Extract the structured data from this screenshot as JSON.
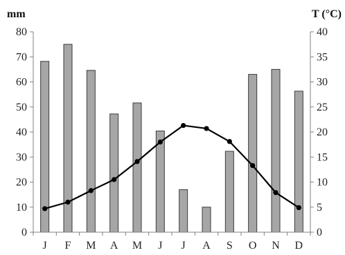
{
  "chart_data": {
    "type": "bar",
    "categories": [
      "J",
      "F",
      "M",
      "A",
      "M",
      "J",
      "J",
      "A",
      "S",
      "O",
      "N",
      "D"
    ],
    "series": [
      {
        "type": "bar",
        "axis": "left",
        "color": "#a6a6a6",
        "values": [
          68.2,
          75.0,
          64.6,
          47.2,
          51.6,
          40.4,
          17.0,
          10.0,
          32.3,
          63.0,
          65.0,
          56.3
        ]
      },
      {
        "type": "line",
        "axis": "right",
        "color": "#000000",
        "values": [
          4.7,
          6.0,
          8.3,
          10.5,
          14.1,
          18.0,
          21.3,
          20.7,
          18.1,
          13.3,
          7.9,
          4.9
        ]
      }
    ],
    "left_axis": {
      "label": "mm",
      "ylim": [
        0,
        80
      ],
      "ticks": [
        "0",
        "10",
        "20",
        "30",
        "40",
        "50",
        "60",
        "70",
        "80"
      ]
    },
    "right_axis": {
      "label": "T (°C)",
      "ylim": [
        0,
        40
      ],
      "ticks": [
        "0",
        "5",
        "10",
        "15",
        "20",
        "25",
        "30",
        "35",
        "40"
      ]
    },
    "grid": false,
    "legend": "none"
  }
}
